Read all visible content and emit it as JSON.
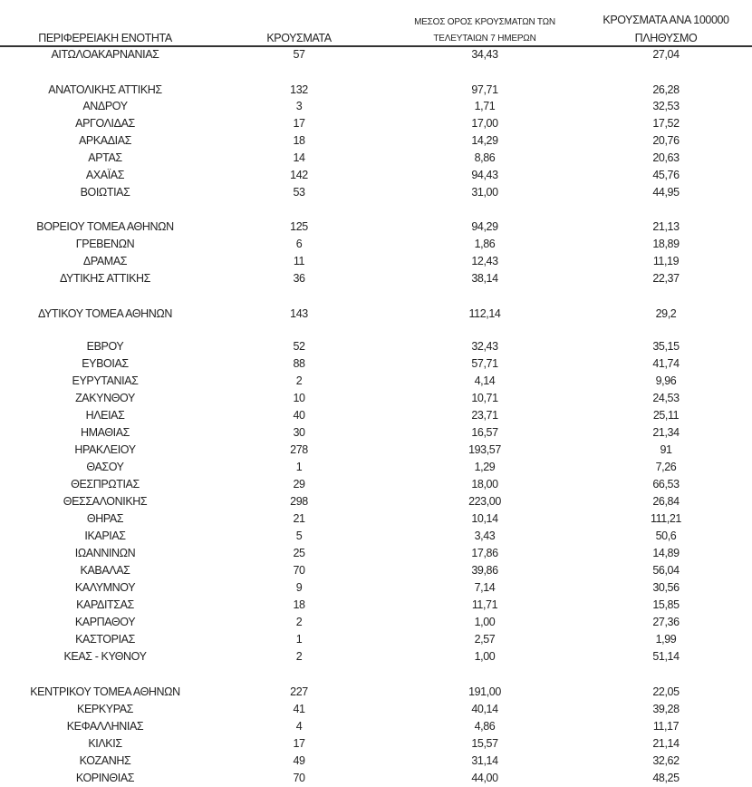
{
  "headers": {
    "region": "ΠΕΡΙΦΕΡΕΙΑΚΗ ΕΝΟΤΗΤΑ",
    "cases": "ΚΡΟΥΣΜΑΤΑ",
    "avg_line1": "ΜΕΣΟΣ ΟΡΟΣ ΚΡΟΥΣΜΑΤΩΝ ΤΩΝ",
    "avg_line2": "ΤΕΛΕΥΤΑΙΩΝ 7 ΗΜΕΡΩΝ",
    "per100k_line1": "ΚΡΟΥΣΜΑΤΑ ΑΝΑ 100000",
    "per100k_line2": "ΠΛΗΘΥΣΜΟ"
  },
  "rows": [
    {
      "region": "ΑΙΤΩΛΟΑΚΑΡΝΑΝΙΑΣ",
      "cases": "57",
      "avg7": "34,43",
      "per100k": "27,04"
    },
    {
      "region": "ΑΝΑΤΟΛΙΚΗΣ ΑΤΤΙΚΗΣ",
      "cases": "132",
      "avg7": "97,71",
      "per100k": "26,28"
    },
    {
      "region": "ΑΝΔΡΟΥ",
      "cases": "3",
      "avg7": "1,71",
      "per100k": "32,53"
    },
    {
      "region": "ΑΡΓΟΛΙΔΑΣ",
      "cases": "17",
      "avg7": "17,00",
      "per100k": "17,52"
    },
    {
      "region": "ΑΡΚΑΔΙΑΣ",
      "cases": "18",
      "avg7": "14,29",
      "per100k": "20,76"
    },
    {
      "region": "ΑΡΤΑΣ",
      "cases": "14",
      "avg7": "8,86",
      "per100k": "20,63"
    },
    {
      "region": "ΑΧΑΪΑΣ",
      "cases": "142",
      "avg7": "94,43",
      "per100k": "45,76"
    },
    {
      "region": "ΒΟΙΩΤΙΑΣ",
      "cases": "53",
      "avg7": "31,00",
      "per100k": "44,95"
    },
    {
      "region": "ΒΟΡΕΙΟΥ ΤΟΜΕΑ ΑΘΗΝΩΝ",
      "cases": "125",
      "avg7": "94,29",
      "per100k": "21,13"
    },
    {
      "region": "ΓΡΕΒΕΝΩΝ",
      "cases": "6",
      "avg7": "1,86",
      "per100k": "18,89"
    },
    {
      "region": "ΔΡΑΜΑΣ",
      "cases": "11",
      "avg7": "12,43",
      "per100k": "11,19"
    },
    {
      "region": "ΔΥΤΙΚΗΣ ΑΤΤΙΚΗΣ",
      "cases": "36",
      "avg7": "38,14",
      "per100k": "22,37"
    },
    {
      "region": "ΔΥΤΙΚΟΥ ΤΟΜΕΑ ΑΘΗΝΩΝ",
      "cases": "143",
      "avg7": "112,14",
      "per100k": "29,2"
    },
    {
      "region": "ΕΒΡΟΥ",
      "cases": "52",
      "avg7": "32,43",
      "per100k": "35,15"
    },
    {
      "region": "ΕΥΒΟΙΑΣ",
      "cases": "88",
      "avg7": "57,71",
      "per100k": "41,74"
    },
    {
      "region": "ΕΥΡΥΤΑΝΙΑΣ",
      "cases": "2",
      "avg7": "4,14",
      "per100k": "9,96"
    },
    {
      "region": "ΖΑΚΥΝΘΟΥ",
      "cases": "10",
      "avg7": "10,71",
      "per100k": "24,53"
    },
    {
      "region": "ΗΛΕΙΑΣ",
      "cases": "40",
      "avg7": "23,71",
      "per100k": "25,11"
    },
    {
      "region": "ΗΜΑΘΙΑΣ",
      "cases": "30",
      "avg7": "16,57",
      "per100k": "21,34"
    },
    {
      "region": "ΗΡΑΚΛΕΙΟΥ",
      "cases": "278",
      "avg7": "193,57",
      "per100k": "91"
    },
    {
      "region": "ΘΑΣΟΥ",
      "cases": "1",
      "avg7": "1,29",
      "per100k": "7,26"
    },
    {
      "region": "ΘΕΣΠΡΩΤΙΑΣ",
      "cases": "29",
      "avg7": "18,00",
      "per100k": "66,53"
    },
    {
      "region": "ΘΕΣΣΑΛΟΝΙΚΗΣ",
      "cases": "298",
      "avg7": "223,00",
      "per100k": "26,84"
    },
    {
      "region": "ΘΗΡΑΣ",
      "cases": "21",
      "avg7": "10,14",
      "per100k": "111,21"
    },
    {
      "region": "ΙΚΑΡΙΑΣ",
      "cases": "5",
      "avg7": "3,43",
      "per100k": "50,6"
    },
    {
      "region": "ΙΩΑΝΝΙΝΩΝ",
      "cases": "25",
      "avg7": "17,86",
      "per100k": "14,89"
    },
    {
      "region": "ΚΑΒΑΛΑΣ",
      "cases": "70",
      "avg7": "39,86",
      "per100k": "56,04"
    },
    {
      "region": "ΚΑΛΥΜΝΟΥ",
      "cases": "9",
      "avg7": "7,14",
      "per100k": "30,56"
    },
    {
      "region": "ΚΑΡΔΙΤΣΑΣ",
      "cases": "18",
      "avg7": "11,71",
      "per100k": "15,85"
    },
    {
      "region": "ΚΑΡΠΑΘΟΥ",
      "cases": "2",
      "avg7": "1,00",
      "per100k": "27,36"
    },
    {
      "region": "ΚΑΣΤΟΡΙΑΣ",
      "cases": "1",
      "avg7": "2,57",
      "per100k": "1,99"
    },
    {
      "region": "ΚΕΑΣ - ΚΥΘΝΟΥ",
      "cases": "2",
      "avg7": "1,00",
      "per100k": "51,14"
    },
    {
      "region": "ΚΕΝΤΡΙΚΟΥ ΤΟΜΕΑ ΑΘΗΝΩΝ",
      "cases": "227",
      "avg7": "191,00",
      "per100k": "22,05"
    },
    {
      "region": "ΚΕΡΚΥΡΑΣ",
      "cases": "41",
      "avg7": "40,14",
      "per100k": "39,28"
    },
    {
      "region": "ΚΕΦΑΛΛΗΝΙΑΣ",
      "cases": "4",
      "avg7": "4,86",
      "per100k": "11,17"
    },
    {
      "region": "ΚΙΛΚΙΣ",
      "cases": "17",
      "avg7": "15,57",
      "per100k": "21,14"
    },
    {
      "region": "ΚΟΖΑΝΗΣ",
      "cases": "49",
      "avg7": "31,14",
      "per100k": "32,62"
    },
    {
      "region": "ΚΟΡΙΝΘΙΑΣ",
      "cases": "70",
      "avg7": "44,00",
      "per100k": "48,25"
    }
  ]
}
